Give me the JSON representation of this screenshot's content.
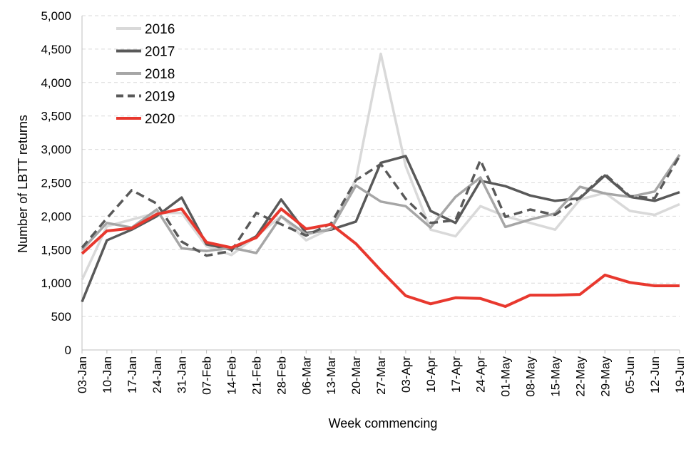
{
  "chart_data": {
    "type": "line",
    "title": "",
    "xlabel": "Week commencing",
    "ylabel": "Number  of LBTT returns",
    "ylim": [
      0,
      5000
    ],
    "yticks": [
      0,
      500,
      1000,
      1500,
      2000,
      2500,
      3000,
      3500,
      4000,
      4500,
      5000
    ],
    "ytick_labels": [
      "0",
      "500",
      "1,000",
      "1,500",
      "2,000",
      "2,500",
      "3,000",
      "3,500",
      "4,000",
      "4,500",
      "5,000"
    ],
    "grid": "horizontal dashed",
    "legend_position": "top-left",
    "categories": [
      "03-Jan",
      "10-Jan",
      "17-Jan",
      "24-Jan",
      "31-Jan",
      "07-Feb",
      "14-Feb",
      "21-Feb",
      "28-Feb",
      "06-Mar",
      "13-Mar",
      "20-Mar",
      "27-Mar",
      "03-Apr",
      "10-Apr",
      "17-Apr",
      "24-Apr",
      "01-May",
      "08-May",
      "15-May",
      "22-May",
      "29-May",
      "05-Jun",
      "12-Jun",
      "19-Jun"
    ],
    "series": [
      {
        "name": "2016",
        "color": "#d9d9d9",
        "dash": "solid",
        "values": [
          1050,
          1850,
          1950,
          2050,
          2050,
          1550,
          1420,
          1700,
          2000,
          1640,
          1820,
          2550,
          4430,
          2750,
          1800,
          1700,
          2150,
          2000,
          1900,
          1800,
          2250,
          2350,
          2080,
          2020,
          2180
        ]
      },
      {
        "name": "2017",
        "color": "#595959",
        "dash": "solid",
        "values": [
          720,
          1640,
          1800,
          2000,
          2280,
          1580,
          1500,
          1700,
          2250,
          1750,
          1800,
          1920,
          2800,
          2900,
          2080,
          1900,
          2530,
          2450,
          2310,
          2230,
          2270,
          2610,
          2290,
          2230,
          2360
        ]
      },
      {
        "name": "2018",
        "color": "#a6a6a6",
        "dash": "solid",
        "values": [
          1500,
          1900,
          1830,
          2100,
          1520,
          1480,
          1530,
          1450,
          2000,
          1730,
          1810,
          2460,
          2220,
          2150,
          1830,
          2290,
          2580,
          1840,
          1950,
          2040,
          2440,
          2340,
          2290,
          2370,
          2920
        ]
      },
      {
        "name": "2019",
        "color": "#595959",
        "dash": "dashed",
        "values": [
          1530,
          1970,
          2390,
          2190,
          1620,
          1410,
          1480,
          2050,
          1880,
          1710,
          1890,
          2540,
          2780,
          2260,
          1900,
          1940,
          2840,
          1990,
          2100,
          2020,
          2280,
          2630,
          2300,
          2270,
          2900
        ]
      },
      {
        "name": "2020",
        "color": "#e8382e",
        "dash": "solid",
        "values": [
          1440,
          1780,
          1820,
          2030,
          2110,
          1610,
          1530,
          1680,
          2110,
          1810,
          1880,
          1590,
          1190,
          810,
          690,
          780,
          770,
          650,
          820,
          820,
          830,
          1120,
          1010,
          960,
          960
        ]
      }
    ]
  }
}
